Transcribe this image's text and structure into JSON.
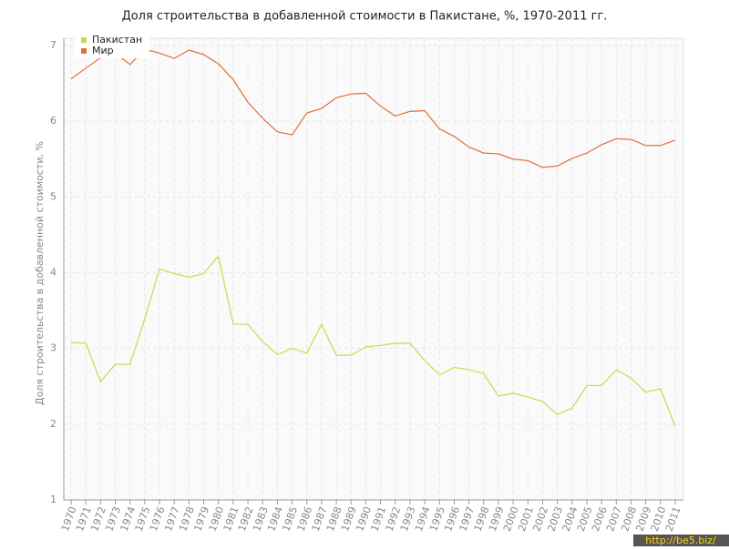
{
  "chart_data": {
    "type": "line",
    "title": "Доля строительства в добавленной стоимости в Пакистане, %, 1970-2011 гг.",
    "y_label": "Доля строительства в добавленной стоимости, %",
    "watermark": "http://be5.biz/",
    "categories": [
      "1970",
      "1971",
      "1972",
      "1973",
      "1974",
      "1975",
      "1976",
      "1977",
      "1978",
      "1979",
      "1980",
      "1981",
      "1982",
      "1983",
      "1984",
      "1985",
      "1986",
      "1987",
      "1988",
      "1989",
      "1990",
      "1991",
      "1992",
      "1993",
      "1994",
      "1995",
      "1996",
      "1997",
      "1998",
      "1999",
      "2000",
      "2001",
      "2002",
      "2003",
      "2004",
      "2005",
      "2006",
      "2007",
      "2008",
      "2009",
      "2010",
      "2011"
    ],
    "series": [
      {
        "name": "Пакистан",
        "color": "#c5dc4c",
        "values": [
          3.08,
          3.07,
          2.56,
          2.79,
          2.79,
          3.39,
          4.05,
          3.99,
          3.94,
          3.99,
          4.22,
          3.32,
          3.32,
          3.09,
          2.92,
          3.0,
          2.94,
          3.32,
          2.91,
          2.91,
          3.02,
          3.04,
          3.07,
          3.07,
          2.84,
          2.65,
          2.75,
          2.72,
          2.67,
          2.37,
          2.41,
          2.36,
          2.3,
          2.13,
          2.21,
          2.51,
          2.51,
          2.72,
          2.61,
          2.42,
          2.47,
          1.97
        ]
      },
      {
        "name": "Мир",
        "color": "#e0703c",
        "values": [
          6.56,
          6.7,
          6.84,
          6.9,
          6.75,
          6.95,
          6.9,
          6.83,
          6.94,
          6.88,
          6.76,
          6.55,
          6.25,
          6.04,
          5.86,
          5.82,
          6.11,
          6.17,
          6.31,
          6.36,
          6.37,
          6.2,
          6.07,
          6.13,
          6.14,
          5.9,
          5.8,
          5.66,
          5.58,
          5.57,
          5.5,
          5.48,
          5.39,
          5.41,
          5.51,
          5.58,
          5.69,
          5.77,
          5.76,
          5.68,
          5.68,
          5.75
        ]
      }
    ],
    "ylim": [
      1,
      7
    ],
    "yticks": [
      1,
      2,
      3,
      4,
      5,
      6,
      7
    ],
    "grid": true
  }
}
